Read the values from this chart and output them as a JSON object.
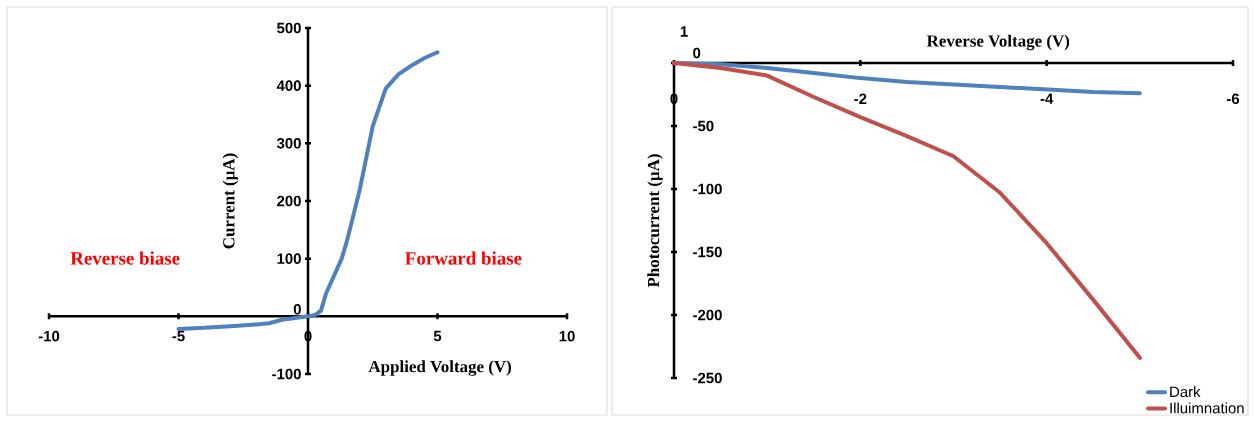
{
  "chart_data": [
    {
      "type": "line",
      "xlabel": "Applied Voltage (V)",
      "ylabel": "Current (µA)",
      "annotations": [
        "Reverse biase",
        "Forward biase"
      ],
      "x": [
        -5,
        -4,
        -3,
        -2,
        -1.5,
        -1,
        -0.5,
        0,
        0.3,
        0.5,
        0.7,
        0.9,
        1.3,
        1.5,
        2,
        2.5,
        3,
        3.5,
        4,
        4.5,
        5
      ],
      "values": [
        -22,
        -20,
        -17,
        -14,
        -12,
        -6,
        -3,
        0,
        3,
        10,
        40,
        60,
        100,
        130,
        220,
        330,
        395,
        420,
        435,
        448,
        458
      ],
      "color": "#4f81bd",
      "xlim": [
        -10,
        10
      ],
      "ylim": [
        -100,
        500
      ],
      "xticks": [
        -10,
        -5,
        0,
        5,
        10
      ],
      "yticks": [
        -100,
        0,
        100,
        200,
        300,
        400,
        500
      ]
    },
    {
      "type": "line",
      "xlabel": "Reverse Voltage (V)",
      "ylabel": "Photocurrent  (µA)",
      "annotations": [
        "1"
      ],
      "x": [
        0,
        -0.5,
        -1,
        -1.5,
        -2,
        -2.5,
        -3,
        -3.5,
        -4,
        -4.5,
        -5
      ],
      "series": [
        {
          "name": "Dark",
          "color": "#4f81bd",
          "values": [
            0,
            -1,
            -4,
            -8,
            -12,
            -15,
            -17,
            -19,
            -21,
            -23,
            -24
          ]
        },
        {
          "name": "Illuimnation",
          "color": "#c0504d",
          "values": [
            0,
            -4,
            -10,
            -27,
            -43,
            -58,
            -74,
            -103,
            -143,
            -188,
            -234
          ]
        }
      ],
      "legend": "bottom right",
      "xlim": [
        0,
        -6
      ],
      "ylim": [
        -250,
        0
      ],
      "xticks": [
        0,
        -2,
        -4,
        -6
      ],
      "yticks": [
        -250,
        -200,
        -150,
        -100,
        -50,
        0
      ]
    }
  ]
}
